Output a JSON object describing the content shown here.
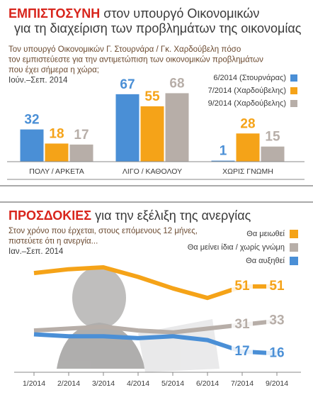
{
  "chart_data": [
    {
      "type": "bar",
      "title_highlight": "ΕΜΠΙΣΤΟΣΥΝΗ",
      "title_lines": [
        " στον υπουργό Οικονομικών",
        "για τη διαχείριση των προβλημάτων της οικονομίας"
      ],
      "subtitle_lines": [
        "Τον υπουργό Οικονομικών Γ. Στουρνάρα / Γκ. Χαρδούβελη πόσο",
        "τον εμπιστεύεστε για την αντιμετώπιση των οικονομικών προβλημάτων",
        "που έχει σήμερα η χώρα;"
      ],
      "period": "Ιούν.–Σεπ. 2014",
      "categories": [
        "ΠΟΛΥ / ΑΡΚΕΤΑ",
        "ΛΙΓΟ / ΚΑΘΟΛΟΥ",
        "ΧΩΡΙΣ ΓΝΩΜΗ"
      ],
      "series": [
        {
          "name": "6/2014 (Στουρνάρας)",
          "color": "#4a8fd6",
          "values": [
            32,
            67,
            1
          ]
        },
        {
          "name": "7/2014 (Χαρδούβελης)",
          "color": "#f5a318",
          "values": [
            18,
            55,
            28
          ]
        },
        {
          "name": "9/2014 (Χαρδούβελης)",
          "color": "#b7aea8",
          "values": [
            17,
            68,
            15
          ]
        }
      ]
    },
    {
      "type": "line",
      "title_highlight": "ΠΡΟΣΔΟΚΙΕΣ",
      "title_lines": [
        " για την εξέλιξη της ανεργίας"
      ],
      "subtitle_lines": [
        "Στον χρόνο που έρχεται, στους επόμενους 12 μήνες,",
        "πιστεύετε ότι η ανεργία..."
      ],
      "period": "Ιαν.–Σεπ. 2014",
      "categories": [
        "1/2014",
        "2/2014",
        "3/2014",
        "4/2014",
        "5/2014",
        "6/2014",
        "7/2014",
        "9/2014"
      ],
      "series": [
        {
          "name": "Θα μειωθεί",
          "color": "#f5a318",
          "values": [
            58,
            60,
            61,
            56,
            50,
            45,
            51,
            51
          ],
          "value_labels": [
            null,
            null,
            null,
            null,
            null,
            null,
            "51",
            "51"
          ]
        },
        {
          "name": "Θα μείνει ίδια / χωρίς γνώμη",
          "color": "#b7aea8",
          "values": [
            28,
            29,
            30,
            28,
            27,
            29,
            31,
            33
          ],
          "value_labels": [
            null,
            null,
            null,
            null,
            null,
            null,
            "31",
            "33"
          ]
        },
        {
          "name": "Θα αυξηθεί",
          "color": "#4a8fd6",
          "values": [
            26,
            25,
            25,
            24,
            25,
            23,
            17,
            16
          ],
          "value_labels": [
            null,
            null,
            null,
            null,
            null,
            null,
            "17",
            "16"
          ]
        }
      ]
    }
  ]
}
